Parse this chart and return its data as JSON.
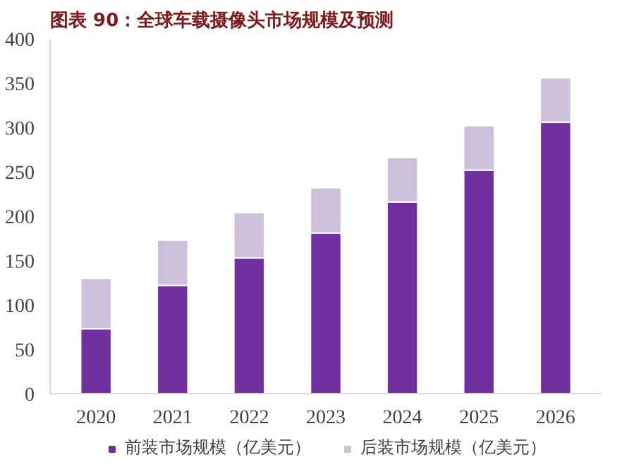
{
  "chart_data": {
    "type": "bar",
    "title": "图表 90：全球车载摄像头市场规模及预测",
    "stacked": true,
    "categories": [
      "2020",
      "2021",
      "2022",
      "2023",
      "2024",
      "2025",
      "2026"
    ],
    "series": [
      {
        "name": "前装市场规模（亿美元）",
        "color": "#7030a0",
        "values": [
          73,
          122,
          153,
          181,
          216,
          252,
          306
        ]
      },
      {
        "name": "后装市场规模（亿美元）",
        "color": "#ccc0da",
        "values": [
          57,
          51,
          51,
          51,
          50,
          50,
          50
        ]
      }
    ],
    "ylim": [
      0,
      400
    ],
    "yticks": [
      0,
      50,
      100,
      150,
      200,
      250,
      300,
      350,
      400
    ],
    "grid": false,
    "legend": "bottom"
  }
}
